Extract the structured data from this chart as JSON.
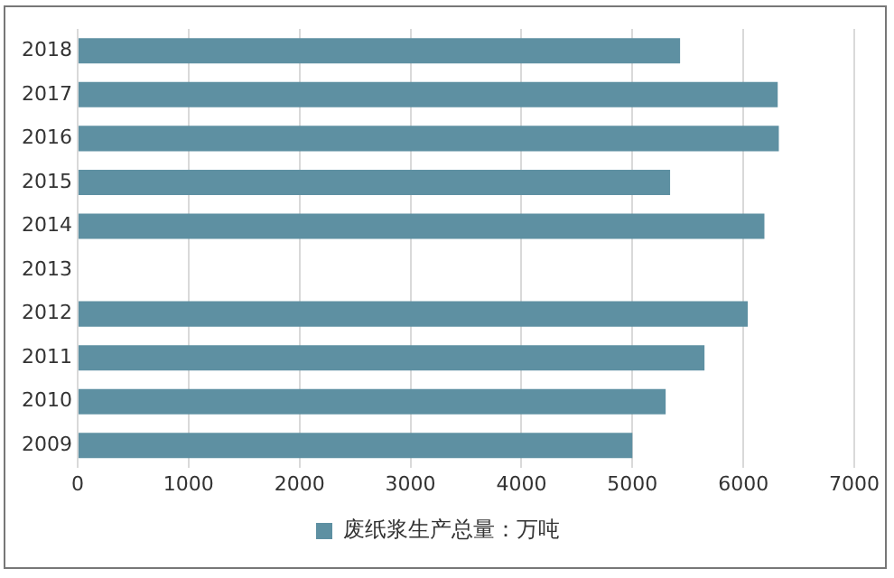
{
  "chart_data": {
    "type": "bar",
    "orientation": "horizontal",
    "categories": [
      "2018",
      "2017",
      "2016",
      "2015",
      "2014",
      "2013",
      "2012",
      "2011",
      "2010",
      "2009"
    ],
    "series": [
      {
        "name": "废纸浆生产总量：万吨",
        "color": "#5e90a2",
        "values": [
          5430,
          6310,
          6320,
          5340,
          6190,
          null,
          6040,
          5650,
          5300,
          5000
        ]
      }
    ],
    "xlim": [
      0,
      7000
    ],
    "xticks": [
      0,
      1000,
      2000,
      3000,
      4000,
      5000,
      6000,
      7000
    ],
    "grid": "x",
    "legend": "bottom"
  }
}
